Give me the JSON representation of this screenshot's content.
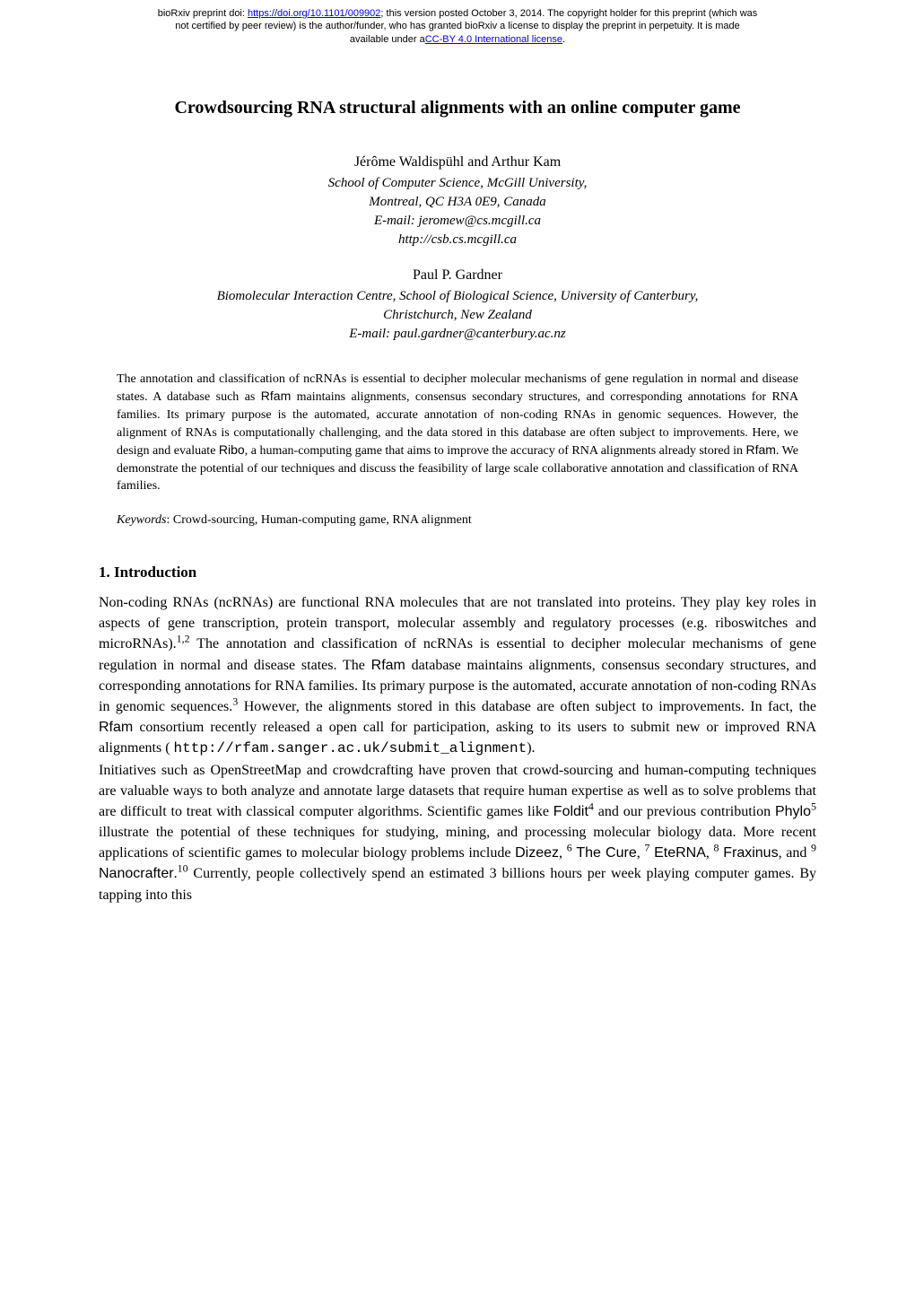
{
  "preprint": {
    "line1_prefix": "bioRxiv preprint doi: ",
    "doi_url": "https://doi.org/10.1101/009902",
    "line1_suffix": "; this version posted October 3, 2014. The copyright holder for this preprint (which was",
    "line2": "not certified by peer review) is the author/funder, who has granted bioRxiv a license to display the preprint in perpetuity. It is made",
    "line3_prefix": "available under a",
    "license_text": "CC-BY 4.0 International license",
    "line3_suffix": "."
  },
  "title": "Crowdsourcing RNA structural alignments with an online computer game",
  "authors": [
    {
      "name": "Jérôme Waldispühl and Arthur Kam",
      "affil_lines": [
        "School of Computer Science, McGill University,",
        "Montreal, QC H3A 0E9, Canada",
        "E-mail: jeromew@cs.mcgill.ca",
        "http://csb.cs.mcgill.ca"
      ]
    },
    {
      "name": "Paul P. Gardner",
      "affil_lines": [
        "Biomolecular Interaction Centre, School of Biological Science, University of Canterbury,",
        "Christchurch, New Zealand",
        "E-mail: paul.gardner@canterbury.ac.nz"
      ]
    }
  ],
  "abstract": {
    "part1": "The annotation and classification of ncRNAs is essential to decipher molecular mechanisms of gene regulation in normal and disease states. A database such as ",
    "rfam1": "Rfam",
    "part2": " maintains alignments, consensus secondary structures, and corresponding annotations for RNA families. Its primary purpose is the automated, accurate annotation of non-coding RNAs in genomic sequences. However, the alignment of RNAs is computationally challenging, and the data stored in this database are often subject to improvements. Here, we design and evaluate ",
    "ribo": "Ribo",
    "part3": ", a human-computing game that aims to improve the accuracy of RNA alignments already stored in ",
    "rfam2": "Rfam",
    "part4": ". We demonstrate the potential of our techniques and discuss the feasibility of large scale collaborative annotation and classification of RNA families."
  },
  "keywords": {
    "label": "Keywords",
    "text": ": Crowd-sourcing, Human-computing game, RNA alignment"
  },
  "section1": {
    "heading": "1. Introduction",
    "p1_part1": "Non-coding RNAs (ncRNAs) are functional RNA molecules that are not translated into proteins. They play key roles in aspects of gene transcription, protein transport, molecular assembly and regulatory processes (e.g. riboswitches and microRNAs).",
    "sup1": "1,2",
    "p1_part2": " The annotation and classification of ncRNAs is essential to decipher molecular mechanisms of gene regulation in normal and disease states. The ",
    "rfam1": "Rfam",
    "p1_part3": " database maintains alignments, consensus secondary structures, and corresponding annotations for RNA families. Its primary purpose is the automated, accurate annotation of non-coding RNAs in genomic sequences.",
    "sup2": "3",
    "p1_part4": " However, the alignments stored in this database are often subject to improvements. In fact, the ",
    "rfam2": "Rfam",
    "p1_part5": " consortium recently released a open call for participation, asking to its users to submit new or improved RNA alignments ( ",
    "url": "http://rfam.sanger.ac.uk/submit_alignment",
    "p1_part6": ").",
    "p2_part1": "Initiatives such as OpenStreetMap and crowdcrafting have proven that crowd-sourcing and human-computing techniques are valuable ways to both analyze and annotate large datasets that require human expertise as well as to solve problems that are difficult to treat with classical computer algorithms. Scientific games like ",
    "foldit": "Foldit",
    "sup4": "4",
    "p2_part2": " and our previous contribution ",
    "phylo": "Phylo",
    "sup5": "5",
    "p2_part3": " illustrate the potential of these techniques for studying, mining, and processing molecular biology data. More recent applications of scientific games to molecular biology problems include ",
    "dizeez": "Dizeez",
    "sup6": "6",
    "comma1": ", ",
    "thecure": "The Cure",
    "sup7": "7",
    "comma2": ", ",
    "eterna": "EteRNA",
    "sup8": "8",
    "comma3": ", ",
    "fraxinus": "Fraxinus",
    "sup9": "9",
    "and": ", and ",
    "nanocrafter": "Nanocrafter",
    "sup10": "10",
    "period": ".",
    "p2_part4": " Currently, people collectively spend an estimated 3 billions hours per week playing computer games. By tapping into this"
  }
}
